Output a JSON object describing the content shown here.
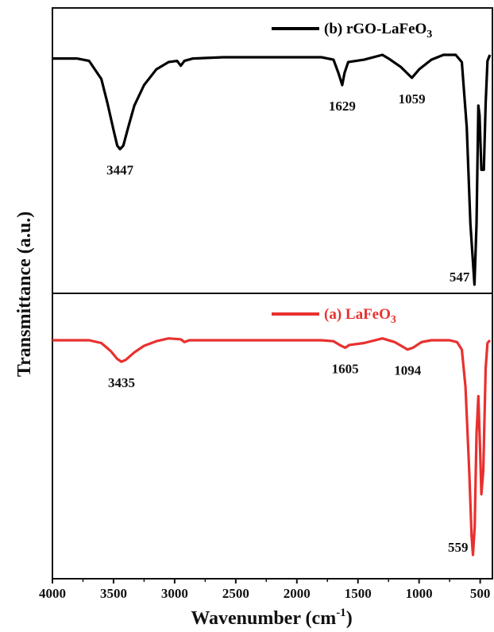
{
  "chart_data": {
    "type": "line",
    "xlabel": "Wavenumber (cm",
    "xlabel_sup": "-1",
    "xlabel_end": ")",
    "ylabel": "Transmittance (a.u.)",
    "xlim": [
      4000,
      400
    ],
    "x_ticks": [
      4000,
      3500,
      3000,
      2500,
      2000,
      1500,
      1000,
      500
    ],
    "grid": false,
    "panels": [
      {
        "position": "top",
        "series": [
          {
            "name": "(b) rGO-LaFeO",
            "name_sub": "3",
            "color": "#000000",
            "legend": "top-right",
            "points": [
              [
                4000,
                0.03
              ],
              [
                3800,
                0.03
              ],
              [
                3700,
                0.05
              ],
              [
                3600,
                0.2
              ],
              [
                3550,
                0.4
              ],
              [
                3500,
                0.62
              ],
              [
                3470,
                0.75
              ],
              [
                3447,
                0.78
              ],
              [
                3420,
                0.75
              ],
              [
                3380,
                0.6
              ],
              [
                3330,
                0.42
              ],
              [
                3250,
                0.25
              ],
              [
                3150,
                0.12
              ],
              [
                3050,
                0.06
              ],
              [
                2980,
                0.05
              ],
              [
                2950,
                0.09
              ],
              [
                2920,
                0.05
              ],
              [
                2850,
                0.03
              ],
              [
                2600,
                0.02
              ],
              [
                2200,
                0.02
              ],
              [
                1800,
                0.02
              ],
              [
                1700,
                0.04
              ],
              [
                1660,
                0.15
              ],
              [
                1629,
                0.25
              ],
              [
                1610,
                0.15
              ],
              [
                1580,
                0.06
              ],
              [
                1450,
                0.04
              ],
              [
                1300,
                0.0
              ],
              [
                1250,
                0.03
              ],
              [
                1150,
                0.1
              ],
              [
                1059,
                0.19
              ],
              [
                1000,
                0.12
              ],
              [
                900,
                0.04
              ],
              [
                800,
                0.0
              ],
              [
                700,
                0.0
              ],
              [
                650,
                0.06
              ],
              [
                610,
                0.6
              ],
              [
                580,
                1.4
              ],
              [
                547,
                1.9
              ],
              [
                530,
                1.4
              ],
              [
                515,
                0.42
              ],
              [
                505,
                0.5
              ],
              [
                490,
                0.95
              ],
              [
                470,
                0.95
              ],
              [
                455,
                0.4
              ],
              [
                440,
                0.05
              ],
              [
                420,
                0.0
              ]
            ]
          }
        ],
        "annotations": [
          {
            "x": 3447,
            "label": "3447"
          },
          {
            "x": 1629,
            "label": "1629"
          },
          {
            "x": 1059,
            "label": "1059"
          },
          {
            "x": 547,
            "label": "547"
          }
        ]
      },
      {
        "position": "bottom",
        "series": [
          {
            "name": "(a) LaFeO",
            "name_sub": "3",
            "color": "#e8312f",
            "legend": "top-right",
            "points": [
              [
                4000,
                0.0
              ],
              [
                3700,
                0.0
              ],
              [
                3600,
                0.03
              ],
              [
                3520,
                0.12
              ],
              [
                3470,
                0.2
              ],
              [
                3435,
                0.23
              ],
              [
                3400,
                0.21
              ],
              [
                3330,
                0.13
              ],
              [
                3250,
                0.06
              ],
              [
                3150,
                0.01
              ],
              [
                3050,
                -0.02
              ],
              [
                2950,
                -0.01
              ],
              [
                2920,
                0.02
              ],
              [
                2880,
                0.0
              ],
              [
                2500,
                0.0
              ],
              [
                2000,
                0.0
              ],
              [
                1800,
                0.0
              ],
              [
                1700,
                0.01
              ],
              [
                1650,
                0.05
              ],
              [
                1605,
                0.08
              ],
              [
                1570,
                0.05
              ],
              [
                1450,
                0.03
              ],
              [
                1300,
                -0.02
              ],
              [
                1200,
                0.02
              ],
              [
                1120,
                0.08
              ],
              [
                1094,
                0.1
              ],
              [
                1050,
                0.08
              ],
              [
                980,
                0.02
              ],
              [
                900,
                0.0
              ],
              [
                750,
                0.0
              ],
              [
                690,
                0.02
              ],
              [
                650,
                0.1
              ],
              [
                620,
                0.5
              ],
              [
                590,
                1.4
              ],
              [
                570,
                2.1
              ],
              [
                559,
                2.3
              ],
              [
                545,
                2.0
              ],
              [
                530,
                1.0
              ],
              [
                515,
                0.6
              ],
              [
                500,
                1.2
              ],
              [
                490,
                1.65
              ],
              [
                475,
                1.4
              ],
              [
                455,
                0.3
              ],
              [
                440,
                0.03
              ],
              [
                420,
                0.0
              ]
            ]
          }
        ],
        "annotations": [
          {
            "x": 3435,
            "label": "3435"
          },
          {
            "x": 1605,
            "label": "1605"
          },
          {
            "x": 1094,
            "label": "1094"
          },
          {
            "x": 559,
            "label": "559"
          }
        ]
      }
    ]
  }
}
